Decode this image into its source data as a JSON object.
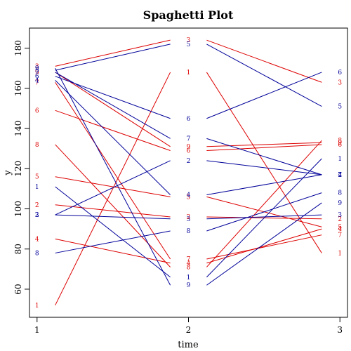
{
  "chart_data": {
    "type": "line",
    "title": "Spaghetti Plot",
    "xlabel": "time",
    "ylabel": "y",
    "xlim": [
      0.95,
      3.05
    ],
    "ylim": [
      46,
      190
    ],
    "xticks": [
      1,
      2,
      3
    ],
    "yticks": [
      60,
      80,
      100,
      120,
      140,
      160,
      180
    ],
    "grid": false,
    "colors": {
      "red": "#dd0000",
      "blue": "#000099"
    },
    "group_a": {
      "color": "red",
      "labels": [
        "1",
        "2",
        "3",
        "4",
        "5",
        "6",
        "7",
        "8",
        "9"
      ],
      "time1": [
        52,
        102,
        171,
        85,
        116,
        149,
        163,
        132,
        168
      ],
      "time2": [
        168,
        96,
        184,
        73,
        106,
        129,
        75,
        71,
        131
      ],
      "time3": [
        78,
        95,
        163,
        90,
        91,
        132,
        87,
        134,
        133
      ]
    },
    "group_b": {
      "color": "blue",
      "labels": [
        "1",
        "2",
        "3",
        "4",
        "5",
        "6",
        "7",
        "8",
        "9"
      ],
      "time1": [
        111,
        97,
        97,
        164,
        169,
        166,
        168,
        78,
        170
      ],
      "time2": [
        66,
        124,
        95,
        107,
        182,
        145,
        135,
        89,
        62
      ],
      "time3": [
        125,
        117,
        97,
        117,
        151,
        168,
        117,
        108,
        103
      ]
    }
  }
}
